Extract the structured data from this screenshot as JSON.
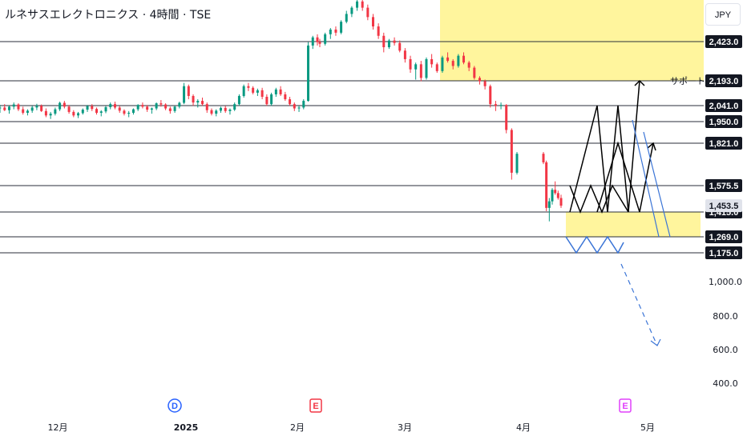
{
  "header": {
    "title": "ルネサスエレクトロニクス · 4時間 · TSE",
    "currency": "JPY"
  },
  "colors": {
    "up": "#089981",
    "down": "#f23645",
    "zone": "#fff59d",
    "blue_path": "#3a74d6",
    "black_path": "#000000",
    "price_badge_bg": "#131722",
    "price_badge_gray": "#e0e3eb",
    "event_dividend": "#2962ff",
    "event_earnings": "#f23645",
    "event_earnings_future": "#e040fb"
  },
  "price_axis": {
    "level_badges": [
      "2,423.0",
      "2,193.0",
      "2,041.0",
      "1,950.0",
      "1,821.0",
      "1,575.5",
      "1,415.0",
      "1,269.0",
      "1,175.0"
    ],
    "current_price": "1,453.5",
    "scale_ticks": [
      "1,000.0",
      "800.0",
      "600.0",
      "400.0"
    ]
  },
  "time_axis": {
    "labels": [
      "12月",
      "2025",
      "2月",
      "3月",
      "4月",
      "5月"
    ]
  },
  "events": [
    {
      "letter": "D",
      "kind": "dividend"
    },
    {
      "letter": "E",
      "kind": "earnings"
    },
    {
      "letter": "E",
      "kind": "earnings-future"
    }
  ],
  "annotations": {
    "support_label": "サポート"
  },
  "chart_data": {
    "type": "candlestick",
    "title": "ルネサスエレクトロニクス · 4時間 · TSE",
    "currency": "JPY",
    "horizontal_levels": [
      2423,
      2193,
      2041,
      1950,
      1821,
      1575.5,
      1415,
      1269,
      1175
    ],
    "last_price": 1453.5,
    "ylim": [
      330,
      2720
    ],
    "x_labels": [
      "12月",
      "2025",
      "2月",
      "3月",
      "4月",
      "5月"
    ],
    "zones": [
      {
        "name": "upper",
        "y_range": [
          2193,
          2720
        ]
      },
      {
        "name": "lower",
        "y_range": [
          1269,
          1415
        ]
      }
    ],
    "projections": [
      {
        "color": "black",
        "points": [
          [
            1415,
            0
          ],
          [
            1575,
            1
          ],
          [
            1415,
            2
          ],
          [
            1575,
            3
          ],
          [
            1415,
            4
          ],
          [
            1575,
            5
          ],
          [
            1415,
            6
          ]
        ]
      },
      {
        "color": "blue",
        "points": [
          [
            1269,
            0
          ],
          [
            1175,
            1
          ],
          [
            1269,
            2
          ],
          [
            1175,
            3
          ],
          [
            1269,
            4
          ],
          [
            1175,
            5
          ]
        ]
      }
    ],
    "candles": [
      [
        2025,
        2045,
        2000,
        2030
      ],
      [
        2030,
        2050,
        2010,
        2015
      ],
      [
        2015,
        2040,
        1995,
        2035
      ],
      [
        2035,
        2060,
        2020,
        2048
      ],
      [
        2048,
        2055,
        2010,
        2020
      ],
      [
        2020,
        2035,
        1990,
        2000
      ],
      [
        2000,
        2020,
        1985,
        2012
      ],
      [
        2012,
        2040,
        2000,
        2030
      ],
      [
        2030,
        2052,
        2015,
        2040
      ],
      [
        2040,
        2048,
        2005,
        2010
      ],
      [
        2010,
        2025,
        1975,
        1985
      ],
      [
        1985,
        2005,
        1965,
        1995
      ],
      [
        1995,
        2030,
        1985,
        2020
      ],
      [
        2020,
        2065,
        2010,
        2058
      ],
      [
        2058,
        2070,
        2025,
        2035
      ],
      [
        2035,
        2045,
        1995,
        2005
      ],
      [
        2005,
        2015,
        1975,
        1985
      ],
      [
        1985,
        2005,
        1970,
        1998
      ],
      [
        1998,
        2025,
        1990,
        2018
      ],
      [
        2018,
        2045,
        2005,
        2038
      ],
      [
        2038,
        2050,
        2010,
        2022
      ],
      [
        2022,
        2030,
        1990,
        2000
      ],
      [
        2000,
        2015,
        1980,
        2008
      ],
      [
        2008,
        2040,
        1998,
        2032
      ],
      [
        2032,
        2060,
        2020,
        2050
      ],
      [
        2050,
        2065,
        2020,
        2030
      ],
      [
        2030,
        2040,
        2000,
        2012
      ],
      [
        2012,
        2020,
        1985,
        1995
      ],
      [
        1995,
        2010,
        1975,
        2000
      ],
      [
        2000,
        2025,
        1990,
        2020
      ],
      [
        2020,
        2050,
        2010,
        2045
      ],
      [
        2045,
        2060,
        2025,
        2035
      ],
      [
        2035,
        2045,
        2005,
        2018
      ],
      [
        2018,
        2030,
        1995,
        2025
      ],
      [
        2025,
        2060,
        2015,
        2055
      ],
      [
        2055,
        2075,
        2035,
        2048
      ],
      [
        2048,
        2055,
        2015,
        2025
      ],
      [
        2025,
        2035,
        1995,
        2010
      ],
      [
        2010,
        2040,
        2000,
        2035
      ],
      [
        2035,
        2065,
        2025,
        2058
      ],
      [
        2058,
        2180,
        2050,
        2160
      ],
      [
        2160,
        2170,
        2080,
        2100
      ],
      [
        2100,
        2110,
        2040,
        2060
      ],
      [
        2060,
        2080,
        2030,
        2070
      ],
      [
        2070,
        2090,
        2040,
        2050
      ],
      [
        2050,
        2060,
        2000,
        2015
      ],
      [
        2015,
        2025,
        1985,
        1995
      ],
      [
        1995,
        2020,
        1980,
        2012
      ],
      [
        2012,
        2035,
        2000,
        2028
      ],
      [
        2028,
        2040,
        2000,
        2010
      ],
      [
        2010,
        2025,
        1990,
        2018
      ],
      [
        2018,
        2060,
        2010,
        2050
      ],
      [
        2050,
        2110,
        2040,
        2100
      ],
      [
        2100,
        2170,
        2090,
        2160
      ],
      [
        2160,
        2180,
        2130,
        2150
      ],
      [
        2150,
        2160,
        2110,
        2120
      ],
      [
        2120,
        2145,
        2100,
        2135
      ],
      [
        2135,
        2150,
        2080,
        2095
      ],
      [
        2095,
        2110,
        2040,
        2050
      ],
      [
        2050,
        2120,
        2040,
        2110
      ],
      [
        2110,
        2150,
        2095,
        2140
      ],
      [
        2140,
        2160,
        2100,
        2110
      ],
      [
        2110,
        2125,
        2070,
        2080
      ],
      [
        2080,
        2095,
        2040,
        2050
      ],
      [
        2050,
        2060,
        2010,
        2025
      ],
      [
        2025,
        2040,
        2005,
        2030
      ],
      [
        2030,
        2080,
        2020,
        2070
      ],
      [
        2070,
        2420,
        2065,
        2400
      ],
      [
        2400,
        2460,
        2380,
        2450
      ],
      [
        2450,
        2470,
        2400,
        2420
      ],
      [
        2420,
        2440,
        2390,
        2410
      ],
      [
        2410,
        2480,
        2400,
        2470
      ],
      [
        2470,
        2510,
        2440,
        2500
      ],
      [
        2500,
        2520,
        2460,
        2480
      ],
      [
        2480,
        2560,
        2470,
        2550
      ],
      [
        2550,
        2620,
        2540,
        2600
      ],
      [
        2600,
        2650,
        2580,
        2640
      ],
      [
        2640,
        2700,
        2620,
        2680
      ],
      [
        2680,
        2700,
        2620,
        2640
      ],
      [
        2640,
        2660,
        2560,
        2580
      ],
      [
        2580,
        2600,
        2500,
        2520
      ],
      [
        2520,
        2540,
        2440,
        2460
      ],
      [
        2460,
        2480,
        2360,
        2390
      ],
      [
        2390,
        2440,
        2380,
        2430
      ],
      [
        2430,
        2450,
        2400,
        2415
      ],
      [
        2415,
        2430,
        2360,
        2370
      ],
      [
        2370,
        2385,
        2300,
        2320
      ],
      [
        2320,
        2340,
        2240,
        2260
      ],
      [
        2260,
        2300,
        2200,
        2290
      ],
      [
        2290,
        2310,
        2190,
        2210
      ],
      [
        2210,
        2330,
        2200,
        2320
      ],
      [
        2320,
        2350,
        2270,
        2290
      ],
      [
        2290,
        2300,
        2240,
        2250
      ],
      [
        2250,
        2340,
        2240,
        2330
      ],
      [
        2330,
        2360,
        2300,
        2310
      ],
      [
        2310,
        2320,
        2260,
        2280
      ],
      [
        2280,
        2350,
        2270,
        2340
      ],
      [
        2340,
        2360,
        2290,
        2300
      ],
      [
        2300,
        2310,
        2250,
        2270
      ],
      [
        2270,
        2280,
        2200,
        2210
      ],
      [
        2210,
        2220,
        2170,
        2190
      ],
      [
        2190,
        2200,
        2140,
        2160
      ],
      [
        2160,
        2170,
        2030,
        2050
      ],
      [
        2050,
        2070,
        2010,
        2040
      ],
      [
        2040,
        2060,
        2020,
        2045
      ],
      [
        2045,
        2050,
        1880,
        1900
      ],
      [
        1900,
        1910,
        1610,
        1650
      ],
      [
        1650,
        1770,
        1640,
        1760
      ],
      [
        1760,
        1770,
        1700,
        1710
      ],
      [
        1710,
        1720,
        1420,
        1440
      ],
      [
        1440,
        1500,
        1360,
        1480
      ],
      [
        1480,
        1560,
        1460,
        1550
      ],
      [
        1550,
        1600,
        1520,
        1530
      ],
      [
        1530,
        1545,
        1490,
        1500
      ],
      [
        1500,
        1520,
        1440,
        1453.5
      ]
    ]
  }
}
